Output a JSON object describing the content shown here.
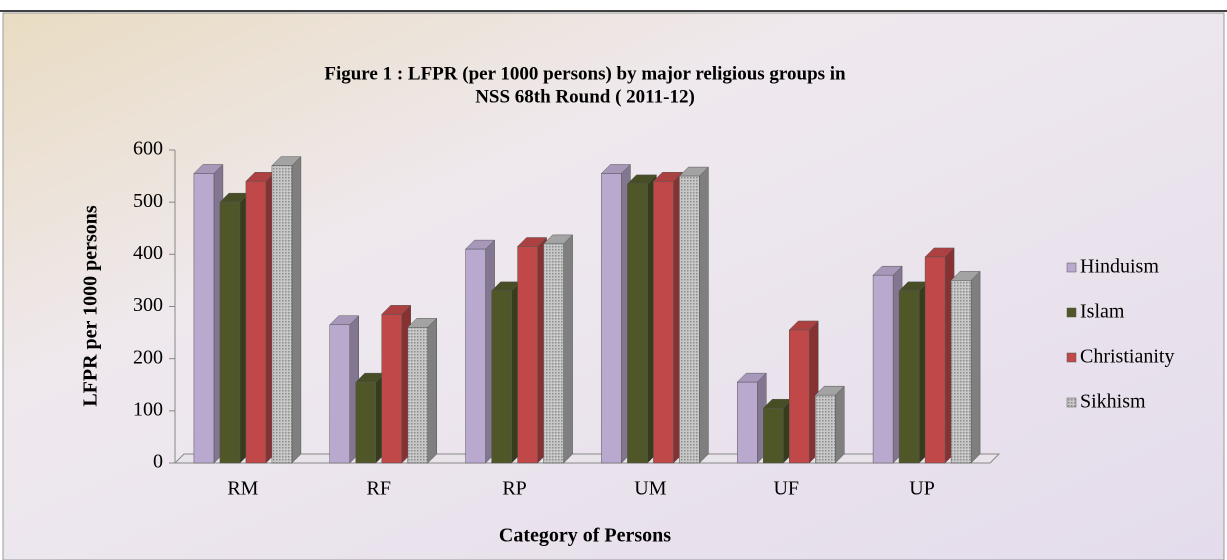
{
  "chart_data": {
    "type": "bar3d",
    "title": "Figure 1 : LFPR (per 1000 persons) by major religious groups in",
    "subtitle": "NSS 68th Round ( 2011-12)",
    "x_label": "Category of Persons",
    "y_label": "LFPR per 1000 persons",
    "categories": [
      "RM",
      "RF",
      "RP",
      "UM",
      "UF",
      "UP"
    ],
    "series": [
      {
        "name": "Hinduism",
        "color": "#b9a9cf",
        "values": [
          555,
          265,
          410,
          555,
          155,
          360
        ]
      },
      {
        "name": "Islam",
        "color": "#4f5628",
        "values": [
          500,
          155,
          330,
          535,
          105,
          330
        ]
      },
      {
        "name": "Christianity",
        "color": "#c04848",
        "values": [
          540,
          285,
          415,
          540,
          255,
          395
        ]
      },
      {
        "name": "Sikhism",
        "color": "#b5b5b5",
        "values": [
          570,
          260,
          420,
          550,
          130,
          350
        ]
      }
    ],
    "ylim": [
      0,
      600
    ],
    "yticks": [
      0,
      100,
      200,
      300,
      400,
      500,
      600
    ],
    "legend": "right"
  }
}
